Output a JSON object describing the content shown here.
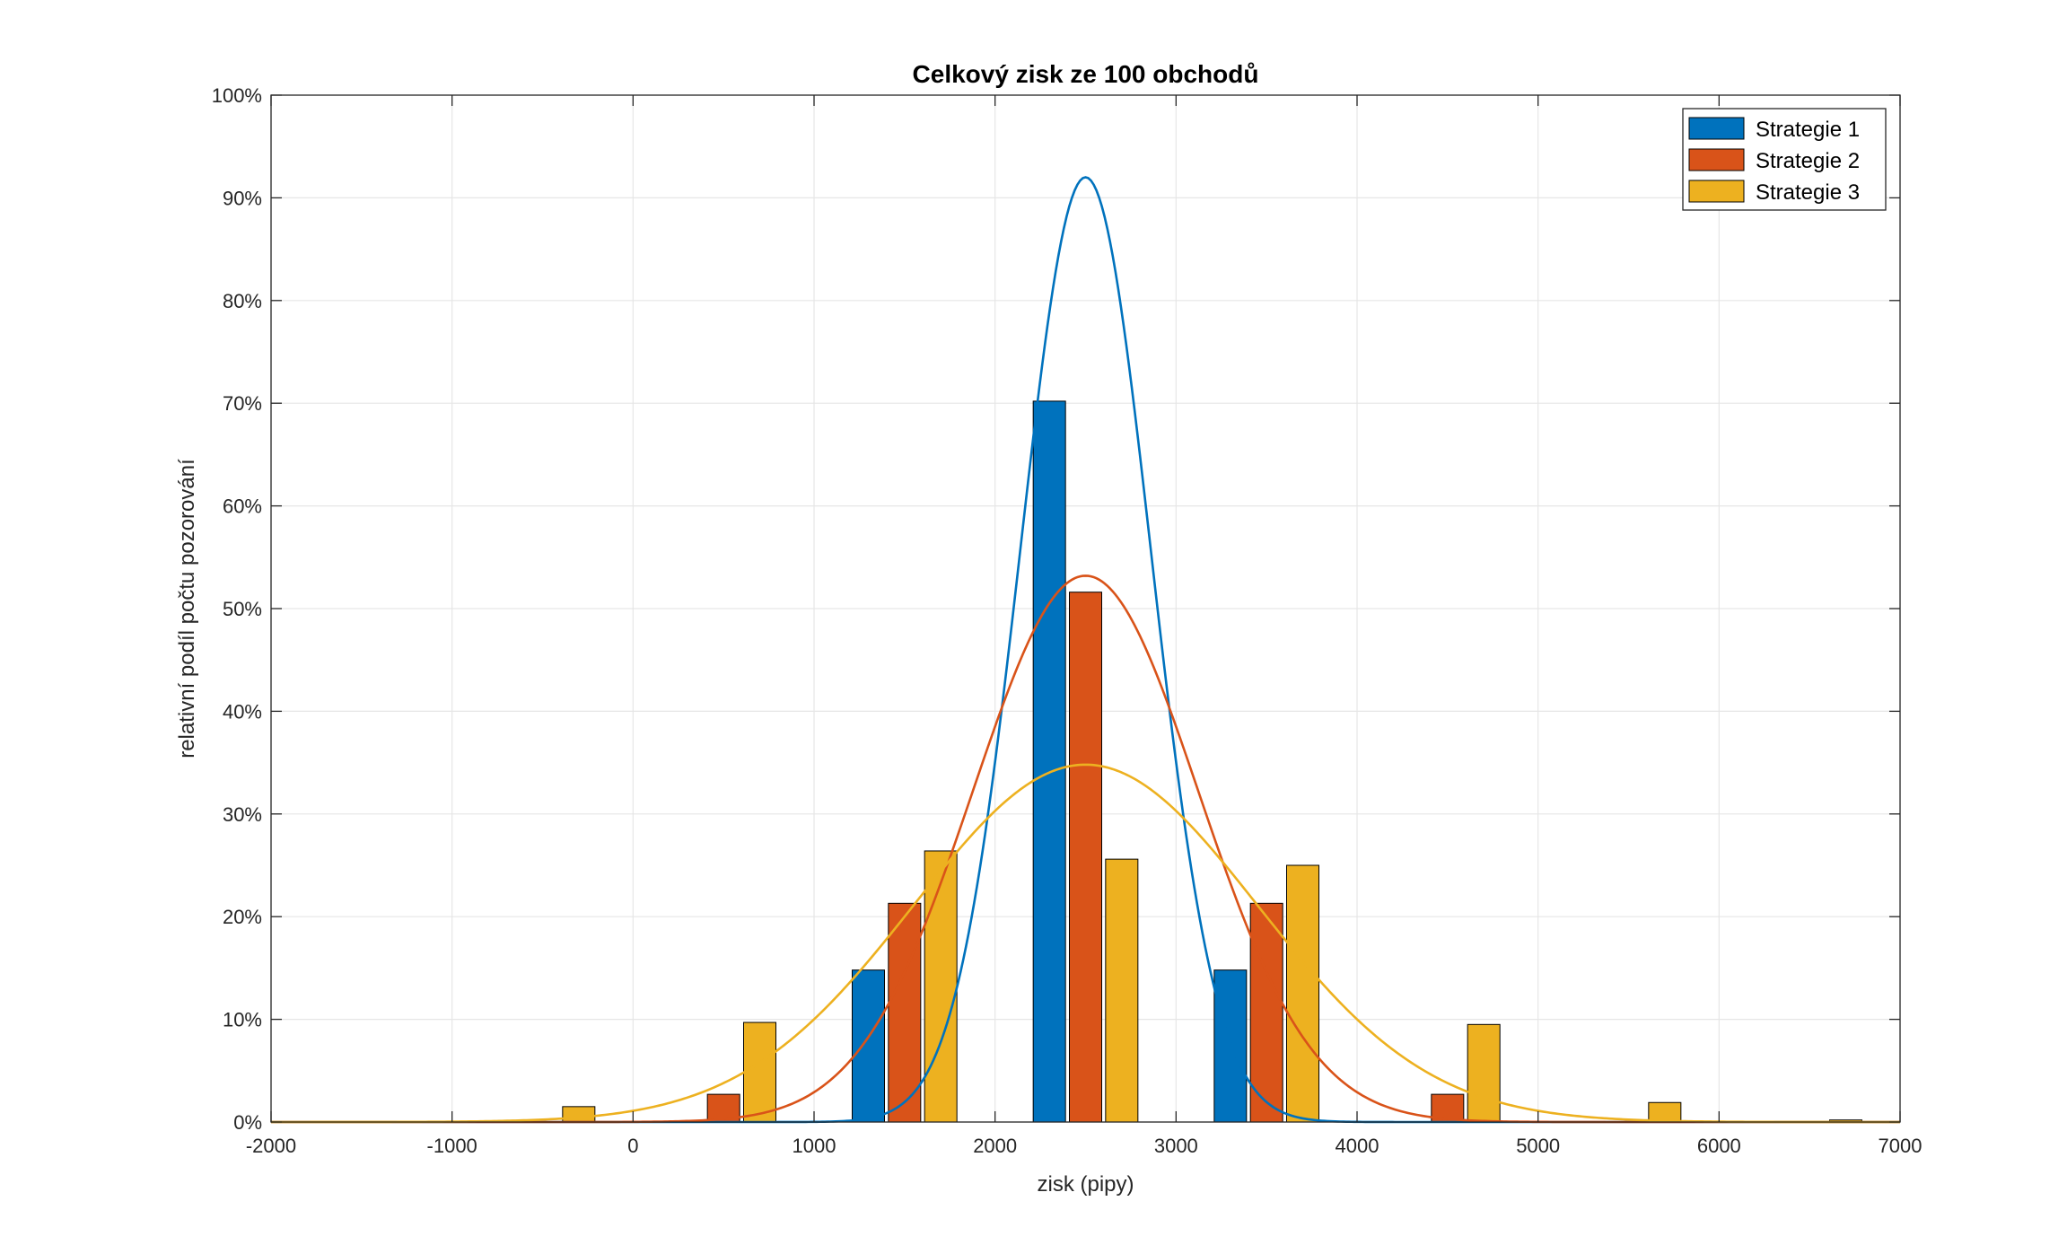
{
  "chart_data": {
    "type": "bar",
    "title": "Celkový zisk ze 100 obchodů",
    "xlabel": "zisk (pipy)",
    "ylabel": "relativní podíl počtu pozorování",
    "xlim": [
      -2000,
      7000
    ],
    "ylim": [
      0,
      1
    ],
    "x_ticks": [
      -2000,
      -1000,
      0,
      1000,
      2000,
      3000,
      4000,
      5000,
      6000,
      7000
    ],
    "x_tick_labels": [
      "-2000",
      "-1000",
      "0",
      "1000",
      "2000",
      "3000",
      "4000",
      "5000",
      "6000",
      "7000"
    ],
    "y_ticks": [
      0,
      0.1,
      0.2,
      0.3,
      0.4,
      0.5,
      0.6,
      0.7,
      0.8,
      0.9,
      1.0
    ],
    "y_tick_labels": [
      "0%",
      "10%",
      "20%",
      "30%",
      "40%",
      "50%",
      "60%",
      "70%",
      "80%",
      "90%",
      "100%"
    ],
    "grid": true,
    "legend_position": "top-right",
    "series": [
      {
        "name": "Strategie 1",
        "color": "#0072BD",
        "bars": [
          {
            "x": 1300,
            "y": 0.148
          },
          {
            "x": 2300,
            "y": 0.702
          },
          {
            "x": 3300,
            "y": 0.148
          }
        ],
        "fit": {
          "type": "normal",
          "mean": 2500,
          "peak": 0.92,
          "sigma": 360
        }
      },
      {
        "name": "Strategie 2",
        "color": "#D95319",
        "bars": [
          {
            "x": 500,
            "y": 0.027
          },
          {
            "x": 1500,
            "y": 0.213
          },
          {
            "x": 2500,
            "y": 0.516
          },
          {
            "x": 3500,
            "y": 0.213
          },
          {
            "x": 4500,
            "y": 0.027
          }
        ],
        "fit": {
          "type": "normal",
          "mean": 2500,
          "peak": 0.532,
          "sigma": 622
        }
      },
      {
        "name": "Strategie 3",
        "color": "#EDB120",
        "bars": [
          {
            "x": -300,
            "y": 0.015
          },
          {
            "x": 700,
            "y": 0.097
          },
          {
            "x": 1700,
            "y": 0.264
          },
          {
            "x": 2700,
            "y": 0.256
          },
          {
            "x": 3700,
            "y": 0.25
          },
          {
            "x": 4700,
            "y": 0.095
          },
          {
            "x": 5700,
            "y": 0.019
          },
          {
            "x": 6700,
            "y": 0.002
          }
        ],
        "fit": {
          "type": "normal",
          "mean": 2500,
          "peak": 0.348,
          "sigma": 950
        }
      }
    ]
  }
}
